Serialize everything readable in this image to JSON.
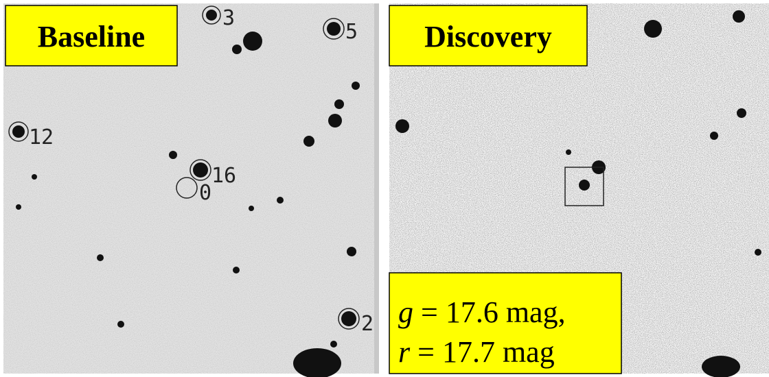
{
  "panels": [
    {
      "label": "Baseline",
      "markers": [
        "3",
        "5",
        "12",
        "16",
        "0",
        "2"
      ]
    },
    {
      "label": "Discovery",
      "photometry": [
        {
          "band": "g",
          "text": " = 17.6 mag,"
        },
        {
          "band": "r",
          "text": " = 17.7 mag"
        }
      ]
    }
  ]
}
